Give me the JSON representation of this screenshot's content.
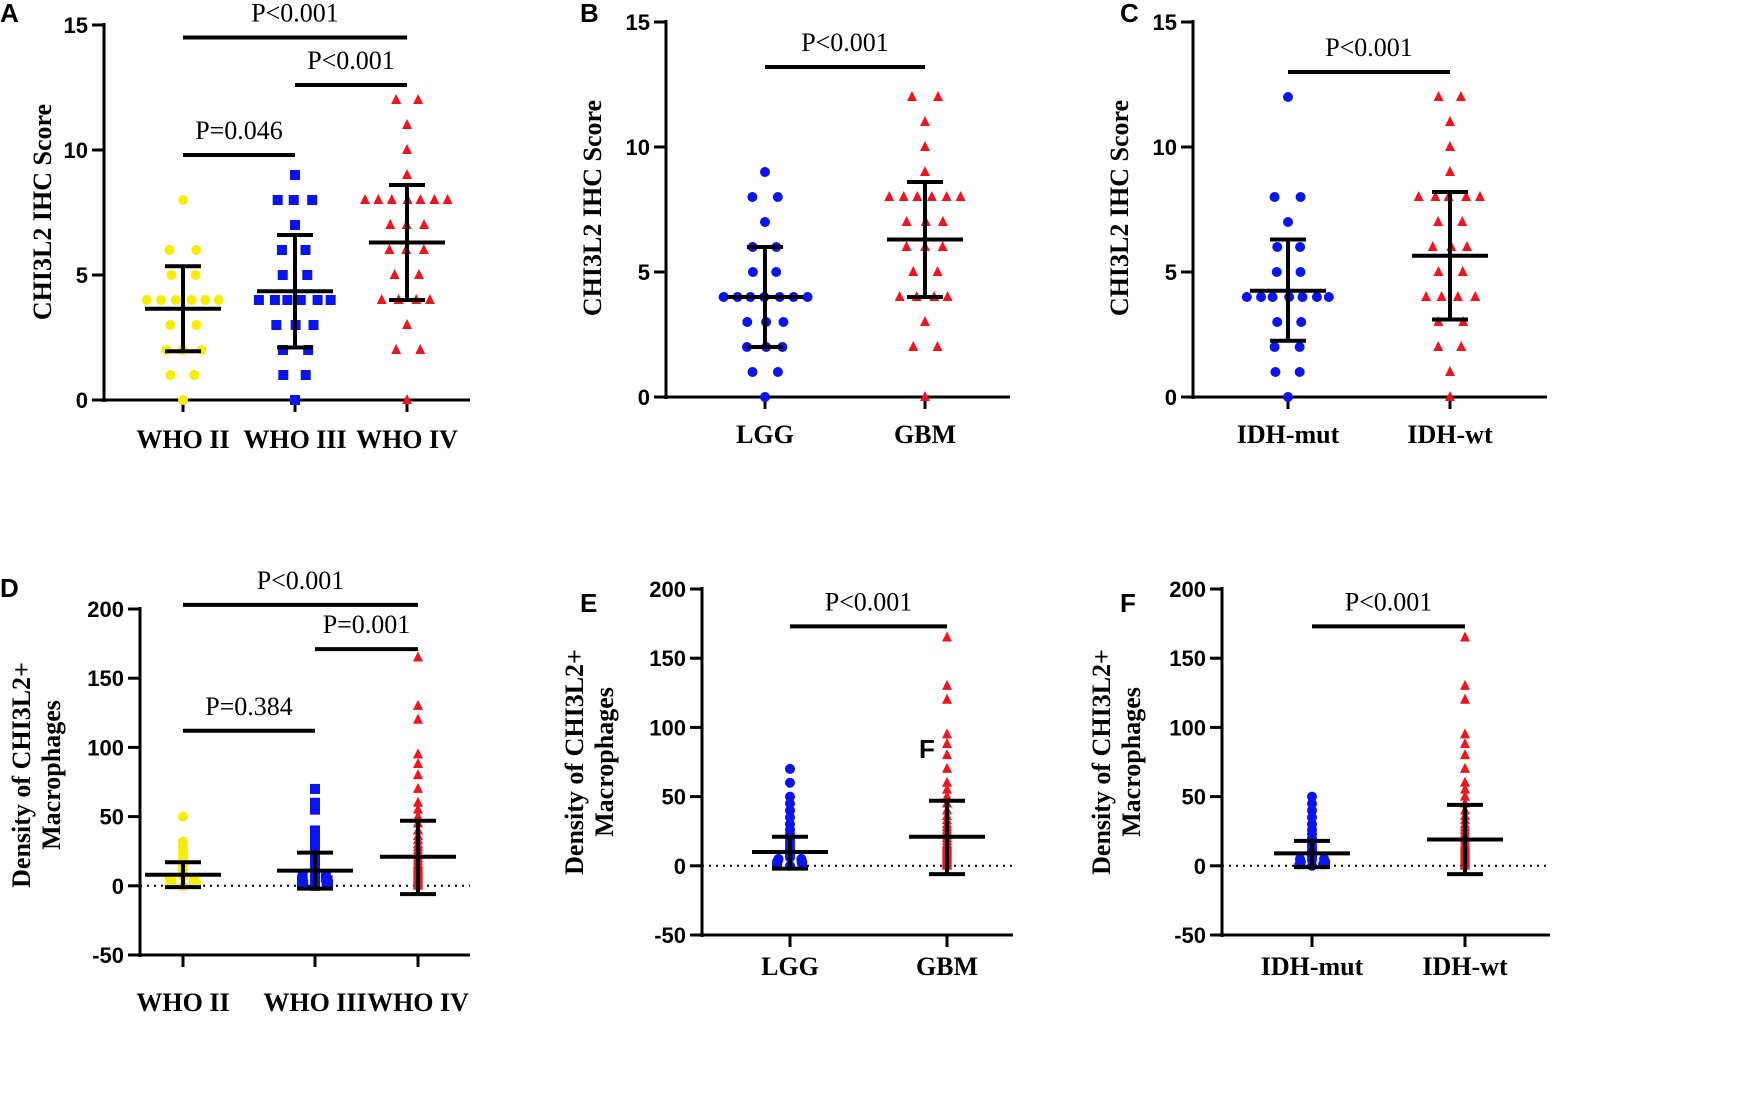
{
  "colors": {
    "yellow": "#f5ee00",
    "blue": "#0a14f0",
    "red": "#f0141e",
    "black": "#000000"
  },
  "chart_data": [
    {
      "panel": "A",
      "type": "scatter",
      "ylabel": "CHI3L2 IHC Score",
      "ylim": [
        0,
        15
      ],
      "yticks": [
        0,
        5,
        10,
        15
      ],
      "categories": [
        "WHO II",
        "WHO III",
        "WHO IV"
      ],
      "groups": [
        {
          "name": "WHO II",
          "color": "yellow",
          "marker": "circle",
          "mean": 3.65,
          "sd_low": 1.95,
          "sd_high": 5.35,
          "points": [
            0,
            1,
            1,
            2,
            2,
            2,
            3,
            3,
            4,
            4,
            4,
            4,
            4,
            4,
            5,
            5,
            6,
            6,
            8
          ]
        },
        {
          "name": "WHO III",
          "color": "blue",
          "marker": "square",
          "mean": 4.35,
          "sd_low": 2.1,
          "sd_high": 6.6,
          "points": [
            0,
            1,
            1,
            2,
            2,
            3,
            3,
            3,
            4,
            4,
            4,
            4,
            4,
            4,
            5,
            5,
            6,
            6,
            7,
            8,
            8,
            8,
            9
          ]
        },
        {
          "name": "WHO IV",
          "color": "red",
          "marker": "triangle",
          "mean": 6.3,
          "sd_low": 4.0,
          "sd_high": 8.6,
          "points": [
            0,
            2,
            2,
            3,
            4,
            4,
            4,
            4,
            5,
            5,
            6,
            6,
            6,
            7,
            7,
            7,
            8,
            8,
            8,
            8,
            8,
            8,
            8,
            9,
            10,
            11,
            12,
            12
          ]
        }
      ],
      "comparisons": [
        {
          "from": 0,
          "to": 1,
          "label": "P=0.046",
          "y": 9.8
        },
        {
          "from": 1,
          "to": 2,
          "label": "P<0.001",
          "y": 12.6
        },
        {
          "from": 0,
          "to": 2,
          "label": "P<0.001",
          "y": 14.5
        }
      ]
    },
    {
      "panel": "B",
      "type": "scatter",
      "ylabel": "CHI3L2 IHC Score",
      "ylim": [
        0,
        15
      ],
      "yticks": [
        0,
        5,
        10,
        15
      ],
      "categories": [
        "LGG",
        "GBM"
      ],
      "groups": [
        {
          "name": "LGG",
          "color": "blue",
          "marker": "circle",
          "mean": 4.0,
          "sd_low": 2.0,
          "sd_high": 6.0,
          "points": [
            0,
            1,
            1,
            2,
            2,
            2,
            3,
            3,
            3,
            4,
            4,
            4,
            4,
            4,
            4,
            4,
            5,
            5,
            6,
            6,
            7,
            8,
            8,
            9
          ]
        },
        {
          "name": "GBM",
          "color": "red",
          "marker": "triangle",
          "mean": 6.3,
          "sd_low": 4.0,
          "sd_high": 8.6,
          "points": [
            0,
            2,
            2,
            3,
            4,
            4,
            4,
            4,
            5,
            5,
            6,
            6,
            6,
            7,
            7,
            7,
            8,
            8,
            8,
            8,
            8,
            8,
            9,
            10,
            11,
            12,
            12
          ]
        }
      ],
      "comparisons": [
        {
          "from": 0,
          "to": 1,
          "label": "P<0.001",
          "y": 13.2
        }
      ]
    },
    {
      "panel": "C",
      "type": "scatter",
      "ylabel": "CHI3L2 IHC Score",
      "ylim": [
        0,
        15
      ],
      "yticks": [
        0,
        5,
        10,
        15
      ],
      "categories": [
        "IDH-mut",
        "IDH-wt"
      ],
      "groups": [
        {
          "name": "IDH-mut",
          "color": "blue",
          "marker": "circle",
          "mean": 4.25,
          "sd_low": 2.25,
          "sd_high": 6.3,
          "points": [
            0,
            1,
            1,
            2,
            2,
            3,
            3,
            4,
            4,
            4,
            4,
            4,
            4,
            4,
            5,
            5,
            6,
            6,
            7,
            8,
            8,
            12
          ]
        },
        {
          "name": "IDH-wt",
          "color": "red",
          "marker": "triangle",
          "mean": 5.65,
          "sd_low": 3.1,
          "sd_high": 8.2,
          "points": [
            0,
            1,
            2,
            2,
            3,
            3,
            4,
            4,
            4,
            4,
            5,
            5,
            6,
            6,
            6,
            7,
            7,
            8,
            8,
            8,
            8,
            8,
            9,
            10,
            11,
            12,
            12
          ]
        }
      ],
      "comparisons": [
        {
          "from": 0,
          "to": 1,
          "label": "P<0.001",
          "y": 13.0
        }
      ]
    },
    {
      "panel": "D",
      "type": "scatter",
      "ylabel": "Density of CHI3L2+ Macrophages",
      "ylim": [
        -50,
        200
      ],
      "yticks": [
        -50,
        0,
        50,
        100,
        150,
        200
      ],
      "zero_line": true,
      "categories": [
        "WHO II",
        "WHO III",
        "WHO IV"
      ],
      "groups": [
        {
          "name": "WHO II",
          "color": "yellow",
          "marker": "circle",
          "mean": 8,
          "sd_low": -1,
          "sd_high": 17,
          "points": [
            0,
            1,
            1,
            2,
            2,
            3,
            3,
            4,
            4,
            5,
            5,
            6,
            6,
            7,
            8,
            9,
            10,
            11,
            12,
            14,
            16,
            18,
            20,
            22,
            25,
            28,
            32,
            50
          ]
        },
        {
          "name": "WHO III",
          "color": "blue",
          "marker": "square",
          "mean": 11,
          "sd_low": -2,
          "sd_high": 24,
          "points": [
            0,
            1,
            1,
            2,
            2,
            3,
            4,
            4,
            5,
            6,
            6,
            7,
            8,
            9,
            10,
            11,
            12,
            14,
            15,
            17,
            19,
            22,
            25,
            30,
            35,
            40,
            55,
            60,
            70
          ]
        },
        {
          "name": "WHO IV",
          "color": "red",
          "marker": "triangle",
          "mean": 21,
          "sd_low": -6,
          "sd_high": 47,
          "points": [
            0,
            1,
            2,
            3,
            4,
            5,
            6,
            7,
            8,
            9,
            10,
            11,
            12,
            13,
            14,
            15,
            16,
            18,
            20,
            22,
            24,
            26,
            28,
            30,
            33,
            36,
            40,
            45,
            50,
            55,
            60,
            70,
            80,
            88,
            95,
            120,
            130,
            165
          ]
        }
      ],
      "comparisons": [
        {
          "from": 0,
          "to": 1,
          "label": "P=0.384",
          "y": 112
        },
        {
          "from": 1,
          "to": 2,
          "label": "P=0.001",
          "y": 171
        },
        {
          "from": 0,
          "to": 2,
          "label": "P<0.001",
          "y": 203
        }
      ]
    },
    {
      "panel": "E",
      "type": "scatter",
      "ylabel": "Density of CHI3L2+ Macrophages",
      "ylim": [
        -50,
        200
      ],
      "yticks": [
        -50,
        0,
        50,
        100,
        150,
        200
      ],
      "zero_line": true,
      "categories": [
        "LGG",
        "GBM"
      ],
      "annotation": "F",
      "groups": [
        {
          "name": "LGG",
          "color": "blue",
          "marker": "circle",
          "mean": 10,
          "sd_low": -2,
          "sd_high": 21,
          "points": [
            0,
            1,
            1,
            2,
            2,
            3,
            3,
            4,
            4,
            5,
            5,
            6,
            7,
            8,
            9,
            10,
            11,
            12,
            14,
            16,
            18,
            20,
            23,
            26,
            30,
            35,
            40,
            45,
            50,
            60,
            70
          ]
        },
        {
          "name": "GBM",
          "color": "red",
          "marker": "triangle",
          "mean": 21,
          "sd_low": -6,
          "sd_high": 47,
          "points": [
            0,
            1,
            2,
            3,
            4,
            5,
            6,
            7,
            8,
            9,
            10,
            11,
            12,
            13,
            14,
            15,
            16,
            18,
            20,
            22,
            24,
            26,
            28,
            30,
            33,
            36,
            40,
            45,
            50,
            55,
            60,
            70,
            80,
            88,
            95,
            120,
            130,
            165
          ]
        }
      ],
      "comparisons": [
        {
          "from": 0,
          "to": 1,
          "label": "P<0.001",
          "y": 173
        }
      ]
    },
    {
      "panel": "F",
      "type": "scatter",
      "ylabel": "Density of CHI3L2+ Macrophages",
      "ylim": [
        -50,
        200
      ],
      "yticks": [
        -50,
        0,
        50,
        100,
        150,
        200
      ],
      "zero_line": true,
      "categories": [
        "IDH-mut",
        "IDH-wt"
      ],
      "groups": [
        {
          "name": "IDH-mut",
          "color": "blue",
          "marker": "circle",
          "mean": 9,
          "sd_low": -1,
          "sd_high": 18,
          "points": [
            0,
            1,
            1,
            2,
            2,
            3,
            3,
            4,
            5,
            5,
            6,
            7,
            8,
            9,
            10,
            11,
            12,
            14,
            16,
            18,
            20,
            23,
            26,
            30,
            35,
            40,
            45,
            50
          ]
        },
        {
          "name": "IDH-wt",
          "color": "red",
          "marker": "triangle",
          "mean": 19,
          "sd_low": -6,
          "sd_high": 44,
          "points": [
            0,
            1,
            2,
            3,
            4,
            5,
            6,
            7,
            8,
            9,
            10,
            11,
            12,
            13,
            14,
            15,
            16,
            18,
            20,
            22,
            24,
            26,
            28,
            30,
            33,
            36,
            40,
            45,
            50,
            55,
            60,
            70,
            80,
            88,
            95,
            120,
            130,
            165
          ]
        }
      ],
      "comparisons": [
        {
          "from": 0,
          "to": 1,
          "label": "P<0.001",
          "y": 173
        }
      ]
    }
  ]
}
